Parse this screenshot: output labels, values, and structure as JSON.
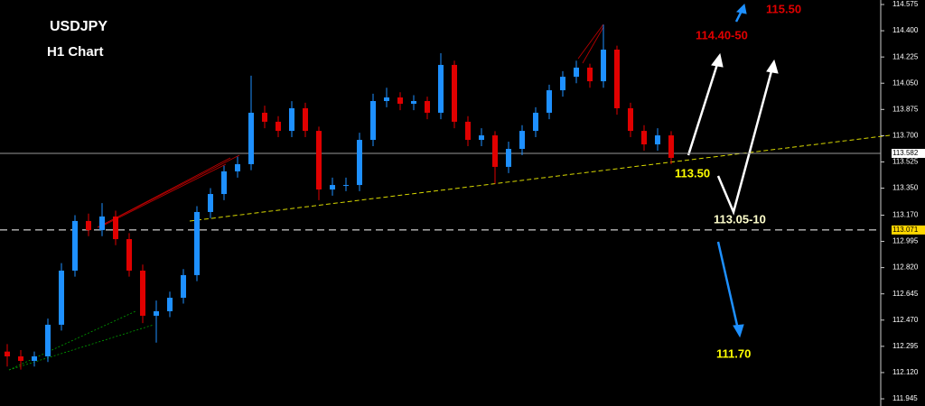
{
  "chart_data": {
    "type": "candlestick",
    "annotations": [
      "USDJPY",
      "H1 Chart",
      "115.50",
      "114.40-50",
      "113.50",
      "113.05-10",
      "111.70"
    ],
    "up_color": "#1e90ff",
    "down_color": "#e00000",
    "open": [
      112.26,
      112.228,
      112.198,
      112.228,
      112.439,
      112.8,
      113.131,
      113.07,
      113.161,
      113.01,
      112.8,
      112.499,
      112.529,
      112.619,
      112.77,
      113.191,
      113.311,
      113.462,
      113.51,
      113.853,
      113.793,
      113.732,
      113.883,
      113.732,
      113.341,
      113.371,
      113.371,
      113.672,
      113.931,
      113.955,
      113.913,
      113.931,
      113.853,
      114.172,
      113.793,
      113.672,
      113.702,
      113.492,
      113.612,
      113.732,
      113.853,
      114.003,
      114.093,
      114.154,
      114.063,
      114.274,
      113.883,
      113.732,
      113.642,
      113.702
    ],
    "high": [
      112.31,
      112.27,
      112.26,
      112.48,
      112.85,
      113.17,
      113.18,
      113.25,
      113.2,
      113.05,
      112.84,
      112.6,
      112.66,
      112.81,
      113.23,
      113.35,
      113.5,
      113.56,
      114.1,
      113.9,
      113.83,
      113.93,
      113.92,
      113.76,
      113.42,
      113.42,
      113.72,
      113.98,
      114.02,
      113.99,
      113.97,
      113.96,
      114.25,
      114.2,
      113.83,
      113.75,
      113.73,
      113.66,
      113.77,
      113.89,
      114.04,
      114.13,
      114.2,
      114.18,
      114.44,
      114.3,
      113.92,
      113.77,
      113.75,
      113.73
    ],
    "low": [
      112.16,
      112.14,
      112.16,
      112.19,
      112.4,
      112.76,
      113.03,
      113.03,
      112.97,
      112.76,
      112.45,
      112.32,
      112.49,
      112.58,
      112.73,
      113.15,
      113.27,
      113.42,
      113.47,
      113.75,
      113.69,
      113.69,
      113.69,
      113.27,
      113.3,
      113.33,
      113.33,
      113.63,
      113.89,
      113.87,
      113.87,
      113.81,
      113.81,
      113.75,
      113.63,
      113.63,
      113.38,
      113.45,
      113.57,
      113.69,
      113.81,
      113.96,
      114.05,
      114.02,
      114.02,
      113.84,
      113.69,
      113.6,
      113.6,
      113.51
    ],
    "close": [
      112.228,
      112.198,
      112.228,
      112.439,
      112.8,
      113.131,
      113.07,
      113.161,
      113.01,
      112.8,
      112.499,
      112.529,
      112.619,
      112.77,
      113.191,
      113.311,
      113.462,
      113.51,
      113.853,
      113.793,
      113.732,
      113.883,
      113.732,
      113.341,
      113.371,
      113.371,
      113.672,
      113.931,
      113.955,
      113.913,
      113.931,
      113.853,
      114.172,
      113.793,
      113.672,
      113.702,
      113.492,
      113.612,
      113.732,
      113.853,
      114.003,
      114.093,
      114.154,
      114.063,
      114.274,
      113.883,
      113.732,
      113.642,
      113.702,
      113.552
    ],
    "current_price": 113.582,
    "level": 113.071,
    "ylim": [
      111.897,
      114.605
    ],
    "yticks": [
      114.575,
      {
        "value": 114.4,
        "label": "114.400"
      },
      114.225,
      {
        "value": 114.05,
        "label": "114.050"
      },
      113.875,
      {
        "value": 113.7,
        "label": "113.700"
      },
      113.525,
      {
        "value": 113.35,
        "label": "113.350"
      },
      {
        "value": 113.17,
        "label": "113.170"
      },
      112.995,
      {
        "value": 112.82,
        "label": "112.820"
      },
      112.645,
      {
        "value": 112.47,
        "label": "112.470"
      },
      112.295,
      {
        "value": 112.12,
        "label": "112.120"
      },
      111.945
    ]
  }
}
